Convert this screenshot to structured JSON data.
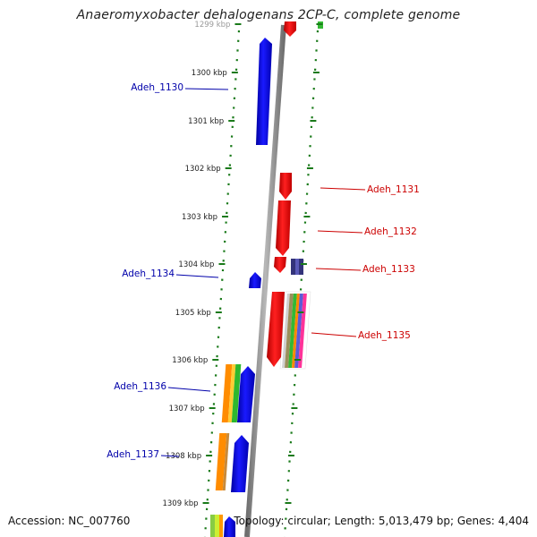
{
  "title": "Anaeromyxobacter dehalogenans 2CP-C, complete genome",
  "footer": {
    "accession": "Accession: NC_007760",
    "summary": "Topology: circular; Length: 5,013,479 bp; Genes: 4,404"
  },
  "colors": {
    "forward_gene": "#ff0000",
    "reverse_gene": "#0000ff",
    "backbone": "#8c8c8c",
    "tick": "#1a7a1a",
    "forward_label": "#cc0000",
    "reverse_label": "#0000aa"
  },
  "ticks": [
    {
      "label": "1299 kbp"
    },
    {
      "label": "1300 kbp"
    },
    {
      "label": "1301 kbp"
    },
    {
      "label": "1302 kbp"
    },
    {
      "label": "1303 kbp"
    },
    {
      "label": "1304 kbp"
    },
    {
      "label": "1305 kbp"
    },
    {
      "label": "1306 kbp"
    },
    {
      "label": "1307 kbp"
    },
    {
      "label": "1308 kbp"
    },
    {
      "label": "1309 kbp"
    }
  ],
  "genes": [
    {
      "label": "Adeh_1130",
      "strand": "reverse"
    },
    {
      "label": "Adeh_1131",
      "strand": "forward"
    },
    {
      "label": "Adeh_1132",
      "strand": "forward"
    },
    {
      "label": "Adeh_1133",
      "strand": "forward"
    },
    {
      "label": "Adeh_1134",
      "strand": "reverse"
    },
    {
      "label": "Adeh_1135",
      "strand": "forward"
    },
    {
      "label": "Adeh_1136",
      "strand": "reverse"
    },
    {
      "label": "Adeh_1137",
      "strand": "reverse"
    }
  ]
}
